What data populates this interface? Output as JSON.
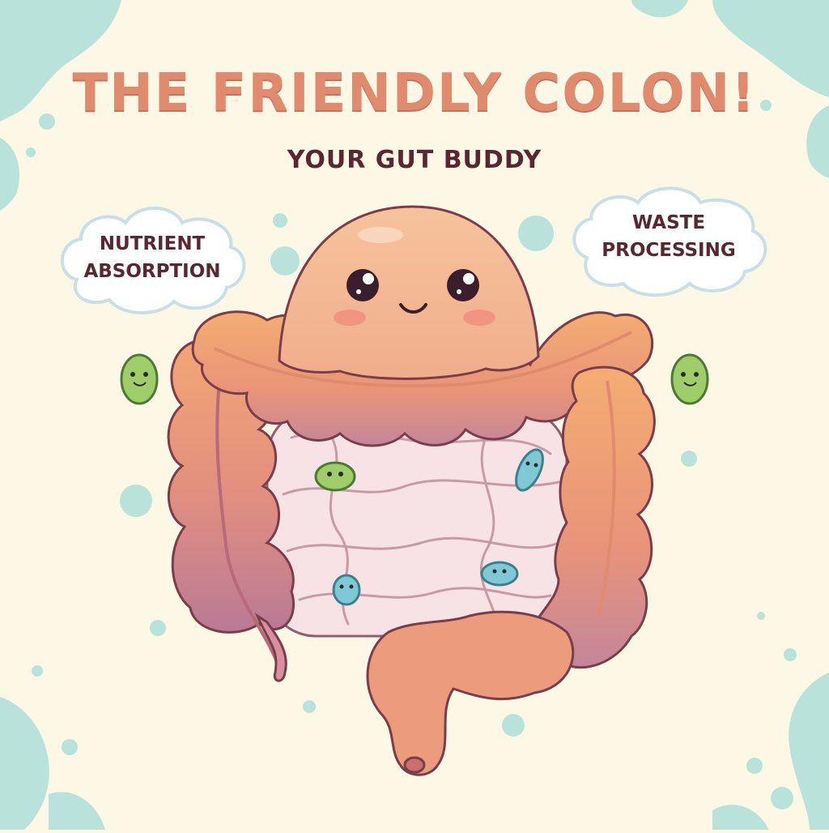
{
  "title": "THE FRIENDLY COLON!",
  "subtitle": "YOUR GUT BUDDY",
  "callouts": {
    "left": {
      "line1": "NUTRIENT",
      "line2": "ABSORPTION"
    },
    "right": {
      "line1": "WASTE",
      "line2": "PROCESSING"
    }
  },
  "colors": {
    "background": "#fdf8e6",
    "splash": "#b9e2da",
    "title": "#e08a6e",
    "text_dark": "#5a2630",
    "colon_orange": "#f2a574",
    "colon_purple": "#c4869a",
    "small_intestine": "#f7e3e6",
    "microbe_green": "#9fcd6a",
    "microbe_teal": "#7fc9d4"
  },
  "illustration": {
    "subject": "cartoon colon with smiling face",
    "microbes": [
      "green-microbe",
      "green-microbe",
      "green-microbe",
      "teal-microbe",
      "teal-microbe",
      "teal-microbe"
    ]
  }
}
